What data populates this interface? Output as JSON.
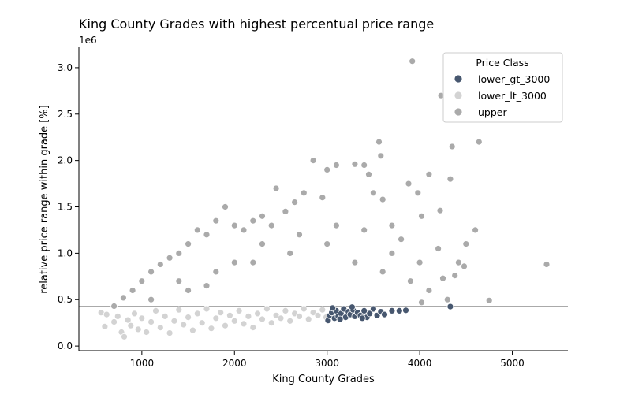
{
  "chart_data": {
    "type": "scatter",
    "title": "King County Grades with highest percentual price range",
    "xlabel": "King County Grades",
    "ylabel": "relative price range within grade [%]",
    "y_offset_label": "1e6",
    "xlim": [
      320,
      5600
    ],
    "ylim": [
      -50000,
      3220000
    ],
    "x_ticks": [
      1000,
      2000,
      3000,
      4000,
      5000
    ],
    "x_tick_labels": [
      "1000",
      "2000",
      "3000",
      "4000",
      "5000"
    ],
    "y_ticks": [
      0,
      500000,
      1000000,
      1500000,
      2000000,
      2500000,
      3000000
    ],
    "y_tick_labels": [
      "0.0",
      "0.5",
      "1.0",
      "1.5",
      "2.0",
      "2.5",
      "3.0"
    ],
    "grid": false,
    "threshold_line_y": 425000,
    "threshold_line_color": "#777777",
    "legend": {
      "title": "Price Class",
      "placement": "top-right"
    },
    "series": [
      {
        "name": "lower_gt_3000",
        "color": "#47576f",
        "points": [
          [
            3010,
            275000
          ],
          [
            3030,
            330000
          ],
          [
            3050,
            360000
          ],
          [
            3080,
            300000
          ],
          [
            3100,
            380000
          ],
          [
            3120,
            320000
          ],
          [
            3150,
            350000
          ],
          [
            3180,
            400000
          ],
          [
            3200,
            310000
          ],
          [
            3230,
            370000
          ],
          [
            3250,
            340000
          ],
          [
            3280,
            390000
          ],
          [
            3300,
            320000
          ],
          [
            3330,
            360000
          ],
          [
            3360,
            330000
          ],
          [
            3400,
            380000
          ],
          [
            3430,
            310000
          ],
          [
            3460,
            350000
          ],
          [
            3500,
            400000
          ],
          [
            3540,
            330000
          ],
          [
            3580,
            370000
          ],
          [
            3620,
            340000
          ],
          [
            3700,
            380000
          ],
          [
            3780,
            380000
          ],
          [
            3850,
            385000
          ],
          [
            4330,
            425000
          ],
          [
            3060,
            410000
          ],
          [
            3270,
            420000
          ],
          [
            3140,
            290000
          ],
          [
            3380,
            300000
          ]
        ]
      },
      {
        "name": "lower_lt_3000",
        "color": "#d3d3d3",
        "points": [
          [
            560,
            360000
          ],
          [
            600,
            210000
          ],
          [
            620,
            340000
          ],
          [
            700,
            260000
          ],
          [
            740,
            320000
          ],
          [
            780,
            150000
          ],
          [
            810,
            100000
          ],
          [
            850,
            280000
          ],
          [
            880,
            220000
          ],
          [
            920,
            350000
          ],
          [
            960,
            180000
          ],
          [
            1000,
            300000
          ],
          [
            1050,
            150000
          ],
          [
            1100,
            260000
          ],
          [
            1150,
            380000
          ],
          [
            1200,
            200000
          ],
          [
            1250,
            320000
          ],
          [
            1300,
            140000
          ],
          [
            1350,
            270000
          ],
          [
            1400,
            390000
          ],
          [
            1450,
            230000
          ],
          [
            1500,
            310000
          ],
          [
            1550,
            170000
          ],
          [
            1600,
            350000
          ],
          [
            1650,
            250000
          ],
          [
            1700,
            400000
          ],
          [
            1750,
            190000
          ],
          [
            1800,
            300000
          ],
          [
            1850,
            360000
          ],
          [
            1900,
            220000
          ],
          [
            1950,
            330000
          ],
          [
            2000,
            270000
          ],
          [
            2050,
            380000
          ],
          [
            2100,
            240000
          ],
          [
            2150,
            320000
          ],
          [
            2200,
            200000
          ],
          [
            2250,
            350000
          ],
          [
            2300,
            290000
          ],
          [
            2350,
            400000
          ],
          [
            2400,
            250000
          ],
          [
            2450,
            330000
          ],
          [
            2500,
            300000
          ],
          [
            2550,
            380000
          ],
          [
            2600,
            270000
          ],
          [
            2650,
            350000
          ],
          [
            2700,
            320000
          ],
          [
            2750,
            400000
          ],
          [
            2800,
            290000
          ],
          [
            2850,
            360000
          ],
          [
            2900,
            330000
          ],
          [
            2950,
            390000
          ],
          [
            2990,
            310000
          ]
        ]
      },
      {
        "name": "upper",
        "color": "#aaaaaa",
        "points": [
          [
            700,
            430000
          ],
          [
            800,
            520000
          ],
          [
            900,
            600000
          ],
          [
            1000,
            700000
          ],
          [
            1100,
            800000
          ],
          [
            1200,
            880000
          ],
          [
            1300,
            950000
          ],
          [
            1400,
            1000000
          ],
          [
            1500,
            1100000
          ],
          [
            1600,
            1250000
          ],
          [
            1700,
            1200000
          ],
          [
            1800,
            1350000
          ],
          [
            1900,
            1500000
          ],
          [
            2000,
            1300000
          ],
          [
            2100,
            1250000
          ],
          [
            2200,
            1350000
          ],
          [
            2300,
            1400000
          ],
          [
            2400,
            1300000
          ],
          [
            2450,
            1700000
          ],
          [
            2550,
            1450000
          ],
          [
            2650,
            1550000
          ],
          [
            2750,
            1650000
          ],
          [
            2850,
            2000000
          ],
          [
            2950,
            1600000
          ],
          [
            3000,
            1900000
          ],
          [
            3100,
            1950000
          ],
          [
            3300,
            1960000
          ],
          [
            3400,
            1950000
          ],
          [
            3450,
            1850000
          ],
          [
            3560,
            2200000
          ],
          [
            3580,
            2050000
          ],
          [
            3600,
            1580000
          ],
          [
            3500,
            1650000
          ],
          [
            3700,
            1300000
          ],
          [
            3800,
            1150000
          ],
          [
            3880,
            1750000
          ],
          [
            3920,
            3070000
          ],
          [
            3980,
            1650000
          ],
          [
            4020,
            1400000
          ],
          [
            4100,
            1850000
          ],
          [
            4220,
            1460000
          ],
          [
            4230,
            2700000
          ],
          [
            4330,
            1800000
          ],
          [
            4350,
            2150000
          ],
          [
            4420,
            900000
          ],
          [
            4500,
            1100000
          ],
          [
            4600,
            1250000
          ],
          [
            4640,
            2200000
          ],
          [
            4750,
            490000
          ],
          [
            5370,
            880000
          ],
          [
            1500,
            600000
          ],
          [
            1800,
            800000
          ],
          [
            2200,
            900000
          ],
          [
            2600,
            1000000
          ],
          [
            3000,
            1100000
          ],
          [
            3300,
            900000
          ],
          [
            3600,
            800000
          ],
          [
            3900,
            700000
          ],
          [
            4100,
            600000
          ],
          [
            4300,
            500000
          ],
          [
            4480,
            860000
          ],
          [
            4020,
            470000
          ],
          [
            4250,
            730000
          ],
          [
            4380,
            760000
          ],
          [
            1100,
            500000
          ],
          [
            1400,
            700000
          ],
          [
            1700,
            650000
          ],
          [
            2000,
            900000
          ],
          [
            2300,
            1100000
          ],
          [
            2700,
            1200000
          ],
          [
            3100,
            1300000
          ],
          [
            3400,
            1250000
          ],
          [
            3700,
            1000000
          ],
          [
            4000,
            900000
          ],
          [
            4200,
            1050000
          ]
        ]
      }
    ]
  }
}
